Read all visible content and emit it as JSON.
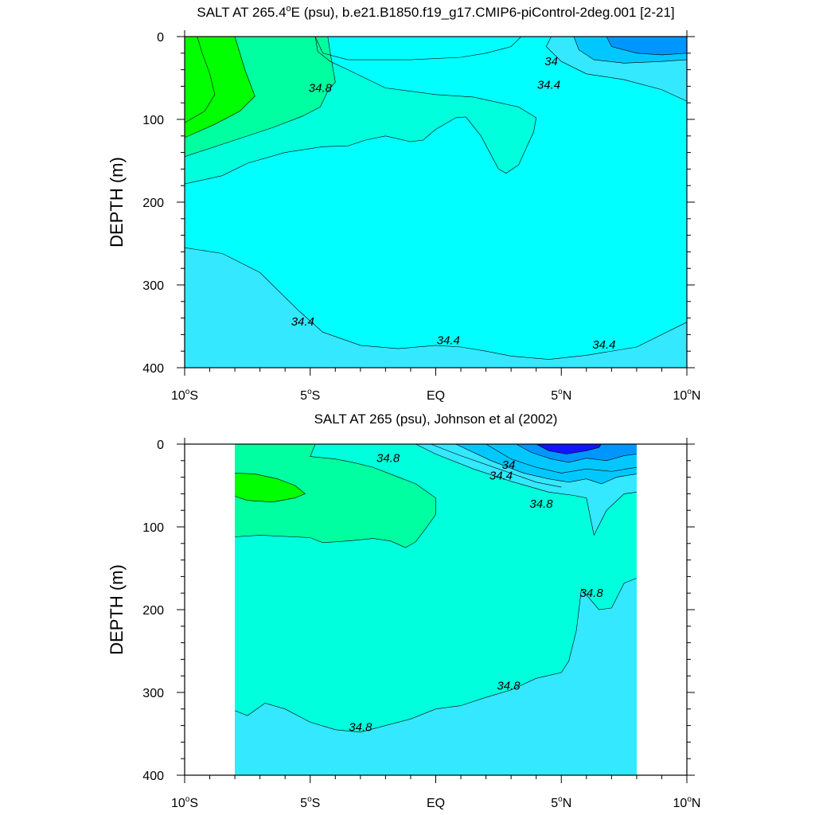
{
  "chart_data": [
    {
      "type": "contour",
      "title": "SALT AT 265.4°E (psu), b.e21.B1850.f19_g17.CMIP6-piControl-2deg.001 [2-21]",
      "title_base": "SALT AT 265.4",
      "title_degree": "o",
      "title_rest": "E (psu), b.e21.B1850.f19_g17.CMIP6-piControl-2deg.001 [2-21]",
      "ylabel": "DEPTH (m)",
      "xlim": [
        -10,
        10
      ],
      "ylim": [
        400,
        0
      ],
      "y_inverted": true,
      "yticks": [
        "0",
        "100",
        "200",
        "300",
        "400"
      ],
      "xticks": [
        {
          "base": "10",
          "deg": "o",
          "hemi": "S"
        },
        {
          "base": "5",
          "deg": "o",
          "hemi": "S"
        },
        {
          "base": "EQ",
          "deg": "",
          "hemi": ""
        },
        {
          "base": "5",
          "deg": "o",
          "hemi": "N"
        },
        {
          "base": "10",
          "deg": "o",
          "hemi": "N"
        }
      ],
      "data_lon_range": [
        -10,
        10
      ],
      "contour_labels": [
        {
          "text": "34.8",
          "x": -4.6,
          "y": 62
        },
        {
          "text": "34",
          "x": 4.6,
          "y": 30
        },
        {
          "text": "34.4",
          "x": 4.5,
          "y": 58
        },
        {
          "text": "34.4",
          "x": -5.3,
          "y": 344
        },
        {
          "text": "34.4",
          "x": 0.5,
          "y": 367
        },
        {
          "text": "34.4",
          "x": 6.7,
          "y": 372
        }
      ],
      "regions_psu": [
        "35.0",
        "34.8",
        "34.6",
        "34.4",
        "34.2",
        "34.0",
        "33.8"
      ],
      "colors": {
        "s35_0": "#00ff00",
        "s34_8": "#00ffa0",
        "s34_6": "#00ffdc",
        "s34_4": "#00ffff",
        "s34_2": "#33e8ff",
        "s34_0": "#00c8ff",
        "s33_8": "#0096ff"
      }
    },
    {
      "type": "contour",
      "title": "SALT AT 265 (psu), Johnson et al (2002)",
      "ylabel": "DEPTH (m)",
      "xlim": [
        -10,
        10
      ],
      "ylim": [
        400,
        0
      ],
      "y_inverted": true,
      "yticks": [
        "0",
        "100",
        "200",
        "300",
        "400"
      ],
      "xticks": [
        {
          "base": "10",
          "deg": "o",
          "hemi": "S"
        },
        {
          "base": "5",
          "deg": "o",
          "hemi": "S"
        },
        {
          "base": "EQ",
          "deg": "",
          "hemi": ""
        },
        {
          "base": "5",
          "deg": "o",
          "hemi": "N"
        },
        {
          "base": "10",
          "deg": "o",
          "hemi": "N"
        }
      ],
      "data_lon_range": [
        -8,
        8
      ],
      "contour_labels": [
        {
          "text": "34.8",
          "x": -1.9,
          "y": 17
        },
        {
          "text": "34",
          "x": 2.9,
          "y": 25
        },
        {
          "text": "34.4",
          "x": 2.6,
          "y": 38
        },
        {
          "text": "34.8",
          "x": 4.2,
          "y": 72
        },
        {
          "text": "34.8",
          "x": 6.2,
          "y": 180
        },
        {
          "text": "34.8",
          "x": 2.9,
          "y": 292
        },
        {
          "text": "34.8",
          "x": -3.0,
          "y": 342
        }
      ],
      "regions_psu": [
        "35.0",
        "34.8",
        "34.6",
        "34.4",
        "34.0",
        "33.6",
        "33.2"
      ],
      "colors": {
        "s35_0": "#00ff00",
        "s34_8": "#00ffa0",
        "s34_6": "#00ffdc",
        "s34_4": "#33e8ff",
        "s34_0": "#00c8ff",
        "s33_6": "#0096ff",
        "s33_2": "#1414ff"
      }
    }
  ]
}
